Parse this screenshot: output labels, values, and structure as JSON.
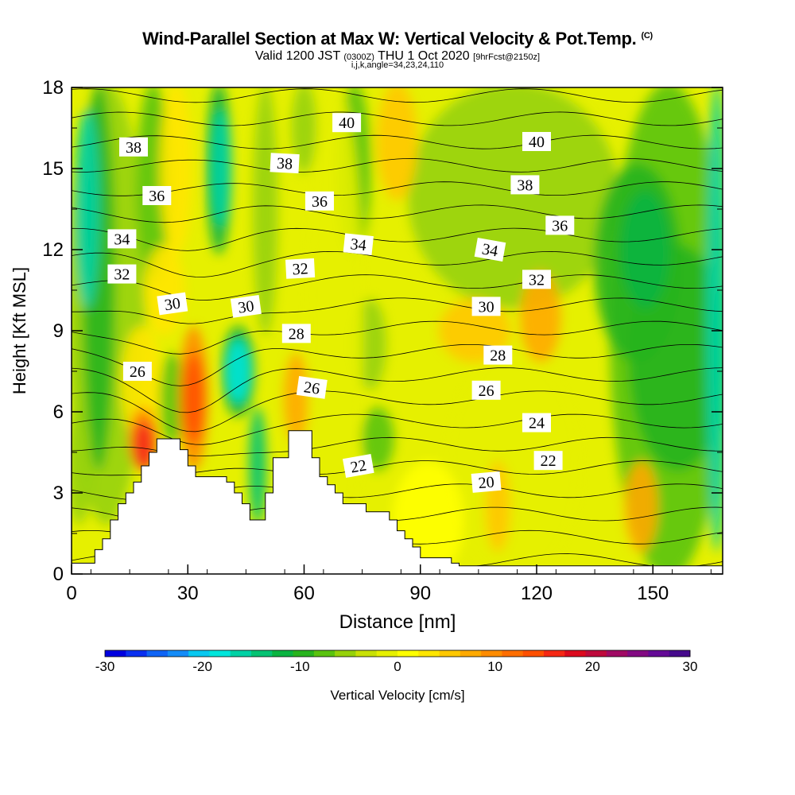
{
  "header": {
    "title": "Wind-Parallel Section at Max W: Vertical Velocity & Pot.Temp.",
    "copyright": "(C)",
    "valid_prefix": "Valid 1200 JST",
    "utc": "(0300Z)",
    "valid_date": "THU 1 Oct 2020",
    "forecast": "[9hrFcst@2150z]",
    "indices": "i,j,k,angle=34,23,24,110"
  },
  "chart_data": {
    "type": "heatmap",
    "xlabel": "Distance [nm]",
    "ylabel": "Height [Kft MSL]",
    "xlim": [
      0,
      168
    ],
    "ylim": [
      0,
      18
    ],
    "xticks": [
      0,
      30,
      60,
      90,
      120,
      150
    ],
    "yticks": [
      0,
      3,
      6,
      9,
      12,
      15,
      18
    ],
    "colorbar": {
      "label": "Vertical Velocity [cm/s]",
      "ticks": [
        -30,
        -20,
        -10,
        0,
        10,
        20,
        30
      ],
      "range": [
        -30,
        30
      ],
      "colors": [
        "#0000e0",
        "#0a30f0",
        "#0f64f5",
        "#148cf8",
        "#08c8f0",
        "#00e6dc",
        "#00d2a5",
        "#05c373",
        "#0ab441",
        "#28b41e",
        "#5ac30f",
        "#96d20a",
        "#c8e105",
        "#e6f000",
        "#ffff00",
        "#ffe600",
        "#ffc800",
        "#ffaa00",
        "#ff8c00",
        "#ff6e00",
        "#ff5000",
        "#f52814",
        "#dc0a1e",
        "#be0a3c",
        "#a00a64",
        "#820a82",
        "#640a96",
        "#460a8c"
      ]
    },
    "terrain_profile": {
      "x": [
        0,
        2,
        6,
        8,
        10,
        12,
        14,
        16,
        18,
        20,
        22,
        26,
        28,
        30,
        32,
        34,
        38,
        40,
        42,
        44,
        46,
        48,
        50,
        52,
        54,
        56,
        60,
        62,
        64,
        66,
        68,
        70,
        74,
        76,
        78,
        80,
        82,
        84,
        86,
        88,
        90,
        92,
        94,
        96,
        98,
        100,
        168
      ],
      "y": [
        0.4,
        0.4,
        0.9,
        1.3,
        2.0,
        2.6,
        3.0,
        3.4,
        4.0,
        4.5,
        5.0,
        5.0,
        4.6,
        4.0,
        3.6,
        3.6,
        3.6,
        3.4,
        3.0,
        2.6,
        2.0,
        2.0,
        3.0,
        4.3,
        4.3,
        5.3,
        5.3,
        4.3,
        3.6,
        3.3,
        3.0,
        2.6,
        2.6,
        2.3,
        2.3,
        2.3,
        2.0,
        1.6,
        1.3,
        1.0,
        0.6,
        0.6,
        0.6,
        0.6,
        0.4,
        0.3,
        0.3
      ]
    },
    "contour_labels": [
      {
        "text": "38",
        "x": 16,
        "y": 15.8,
        "rot": 0
      },
      {
        "text": "36",
        "x": 22,
        "y": 14.0,
        "rot": 0
      },
      {
        "text": "34",
        "x": 13,
        "y": 12.4,
        "rot": 0
      },
      {
        "text": "32",
        "x": 13,
        "y": 11.1,
        "rot": 0
      },
      {
        "text": "30",
        "x": 26,
        "y": 10.0,
        "rot": -8
      },
      {
        "text": "26",
        "x": 17,
        "y": 7.5,
        "rot": 0
      },
      {
        "text": "30",
        "x": 45,
        "y": 9.9,
        "rot": -8
      },
      {
        "text": "38",
        "x": 55,
        "y": 15.2,
        "rot": 3
      },
      {
        "text": "36",
        "x": 64,
        "y": 13.8,
        "rot": 0
      },
      {
        "text": "32",
        "x": 59,
        "y": 11.3,
        "rot": -3
      },
      {
        "text": "28",
        "x": 58,
        "y": 8.9,
        "rot": 0
      },
      {
        "text": "26",
        "x": 62,
        "y": 6.9,
        "rot": 8
      },
      {
        "text": "40",
        "x": 71,
        "y": 16.7,
        "rot": 0
      },
      {
        "text": "34",
        "x": 74,
        "y": 12.2,
        "rot": 6
      },
      {
        "text": "22",
        "x": 74,
        "y": 4.0,
        "rot": -10
      },
      {
        "text": "40",
        "x": 120,
        "y": 16.0,
        "rot": 0
      },
      {
        "text": "38",
        "x": 117,
        "y": 14.4,
        "rot": 0
      },
      {
        "text": "36",
        "x": 126,
        "y": 12.9,
        "rot": 0
      },
      {
        "text": "34",
        "x": 108,
        "y": 12.0,
        "rot": 10
      },
      {
        "text": "32",
        "x": 120,
        "y": 10.9,
        "rot": 0
      },
      {
        "text": "30",
        "x": 107,
        "y": 9.9,
        "rot": 0
      },
      {
        "text": "28",
        "x": 110,
        "y": 8.1,
        "rot": 0
      },
      {
        "text": "26",
        "x": 107,
        "y": 6.8,
        "rot": 0
      },
      {
        "text": "24",
        "x": 120,
        "y": 5.6,
        "rot": 0
      },
      {
        "text": "22",
        "x": 123,
        "y": 4.2,
        "rot": 0
      },
      {
        "text": "20",
        "x": 107,
        "y": 3.4,
        "rot": -5
      }
    ],
    "isentrope_values": [
      20,
      21,
      22,
      23,
      24,
      25,
      26,
      27,
      28,
      29,
      30,
      31,
      32,
      33,
      34,
      35,
      36,
      37,
      38,
      39,
      40,
      41
    ]
  }
}
